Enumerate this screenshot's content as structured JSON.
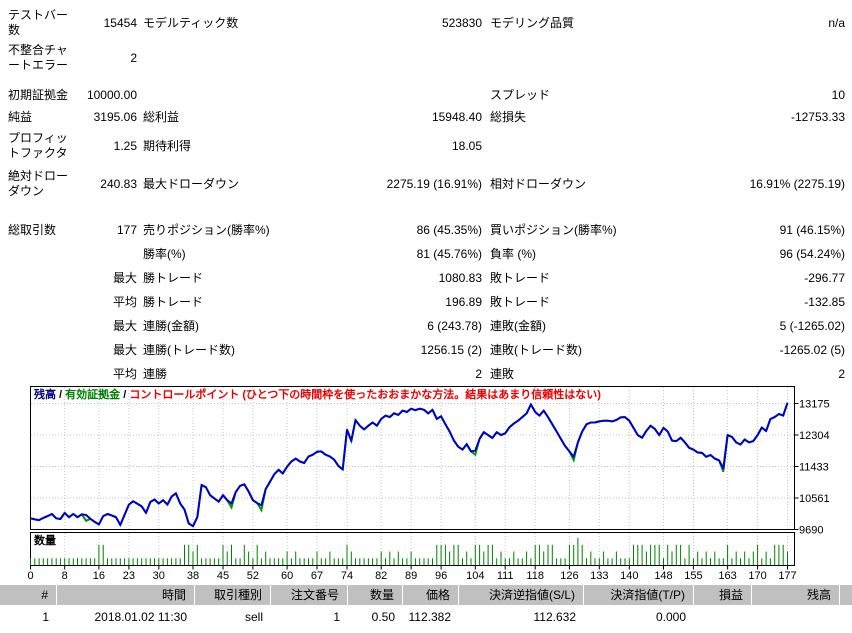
{
  "colors": {
    "balance_line": "#0000cd",
    "equity_line": "#009900",
    "lots_bars": "#008000",
    "legend_balance": "#000080",
    "legend_equity": "#008000",
    "legend_note": "#ee0000",
    "table_header_bg": "#c0c0c0",
    "gridline": "#c6c6c6"
  },
  "stats": {
    "r1": {
      "l1": "テストバー数",
      "v1": "15454",
      "l2": "モデルティック数",
      "v2": "523830",
      "l3": "モデリング品質",
      "v3": "n/a"
    },
    "r2": {
      "l1": "不整合チャートエラー",
      "v1": "2"
    },
    "r3": {
      "l1": "初期証拠金",
      "v1": "10000.00",
      "l3": "スプレッド",
      "v3": "10"
    },
    "r4": {
      "l1": "純益",
      "v1": "3195.06",
      "l2": "総利益",
      "v2": "15948.40",
      "l3": "総損失",
      "v3": "-12753.33"
    },
    "r5": {
      "l1": "プロフィットファクタ",
      "v1": "1.25",
      "l2": "期待利得",
      "v2": "18.05"
    },
    "r6": {
      "l1": "絶対ドローダウン",
      "v1": "240.83",
      "l2": "最大ドローダウン",
      "v2": "2275.19 (16.91%)",
      "l3": "相対ドローダウン",
      "v3": "16.91% (2275.19)"
    },
    "r7": {
      "l1": "総取引数",
      "v1": "177",
      "l2": "売りポジション(勝率%)",
      "v2": "86 (45.35%)",
      "l3": "買いポジション(勝率%)",
      "v3": "91 (46.15%)"
    },
    "r8": {
      "l2": "勝率(%)",
      "v2": "81 (45.76%)",
      "l3": "負率 (%)",
      "v3": "96 (54.24%)"
    },
    "r9": {
      "v1": "最大",
      "l2": "勝トレード",
      "v2": "1080.83",
      "l3": "敗トレード",
      "v3": "-296.77"
    },
    "r10": {
      "v1": "平均",
      "l2": "勝トレード",
      "v2": "196.89",
      "l3": "敗トレード",
      "v3": "-132.85"
    },
    "r11": {
      "v1": "最大",
      "l2": "連勝(金額)",
      "v2": "6 (243.78)",
      "l3": "連敗(金額)",
      "v3": "5 (-1265.02)"
    },
    "r12": {
      "v1": "最大",
      "l2": "連勝(トレード数)",
      "v2": "1256.15 (2)",
      "l3": "連敗(トレード数)",
      "v3": "-1265.02 (5)"
    },
    "r13": {
      "v1": "平均",
      "l2": "連勝",
      "v2": "2",
      "l3": "連敗",
      "v3": "2"
    }
  },
  "chart": {
    "legend_balance": "残高",
    "legend_sep": " / ",
    "legend_equity": "有効証拠金",
    "legend_note": "コントロールポイント (ひとつ下の時間枠を使ったおおまかな方法。結果はあまり信頼性はない)",
    "lots_label": "数量"
  },
  "chart_data": {
    "type": "line",
    "title": "残高 / 有効証拠金 / コントロールポイント",
    "ylim": [
      9690,
      13195
    ],
    "y_ticks": [
      13175,
      12304,
      11433,
      10561,
      9690
    ],
    "x_ticks": [
      0,
      8,
      16,
      23,
      30,
      38,
      45,
      52,
      60,
      67,
      74,
      82,
      89,
      96,
      104,
      111,
      118,
      126,
      133,
      140,
      148,
      155,
      163,
      170,
      177
    ],
    "series": [
      {
        "name": "残高",
        "color": "#0000cd",
        "values": [
          10000,
          9970,
          9950,
          10010,
          10060,
          10120,
          10000,
          9980,
          10150,
          10030,
          10120,
          10030,
          10110,
          10090,
          9985,
          9900,
          9830,
          10060,
          10120,
          10080,
          10030,
          9815,
          10100,
          10380,
          10470,
          10400,
          10330,
          10150,
          10450,
          10520,
          10410,
          10500,
          10380,
          10600,
          10690,
          10410,
          10240,
          9860,
          9780,
          10030,
          10920,
          10860,
          10640,
          10550,
          10460,
          10640,
          10500,
          10410,
          10730,
          10900,
          10940,
          10740,
          10500,
          10420,
          10360,
          10810,
          11010,
          11220,
          11340,
          11240,
          11430,
          11570,
          11650,
          11570,
          11530,
          11710,
          11760,
          11840,
          11850,
          11760,
          11710,
          11620,
          11450,
          11350,
          12450,
          12140,
          12715,
          12560,
          12460,
          12560,
          12650,
          12560,
          12745,
          12840,
          12800,
          12905,
          12860,
          12980,
          12940,
          13030,
          12990,
          13030,
          13000,
          12900,
          13000,
          12750,
          12820,
          12600,
          12400,
          12150,
          11980,
          11900,
          12050,
          11850,
          11870,
          12200,
          12380,
          12300,
          12220,
          12380,
          12300,
          12350,
          12520,
          12620,
          12700,
          12800,
          12900,
          13150,
          12940,
          12840,
          12980,
          12800,
          12600,
          12400,
          12200,
          12000,
          11850,
          11700,
          12100,
          12400,
          12600,
          12650,
          12650,
          12680,
          12700,
          12700,
          12680,
          12720,
          12790,
          12800,
          12700,
          12500,
          12300,
          12230,
          12420,
          12560,
          12470,
          12300,
          12500,
          12400,
          12150,
          12135,
          12230,
          12100,
          11950,
          11900,
          11820,
          11810,
          11700,
          11750,
          11650,
          11600,
          11380,
          12300,
          12250,
          12100,
          12040,
          12180,
          12100,
          12135,
          12300,
          12510,
          12415,
          12745,
          12800,
          12885,
          12840,
          13195
        ]
      },
      {
        "name": "有効証拠金",
        "color": "#009900",
        "dips": [
          [
            13,
            9930
          ],
          [
            47,
            10300
          ],
          [
            54,
            10230
          ],
          [
            104,
            11760
          ],
          [
            127,
            11610
          ],
          [
            162,
            11290
          ]
        ]
      },
      {
        "name": "数量",
        "color": "#008000",
        "values": [
          0.5,
          0.5,
          0.5,
          0.5,
          0.5,
          0.5,
          0.5,
          0.5,
          0.5,
          0.5,
          0.5,
          0.5,
          0.5,
          0.5,
          0.5,
          0.5,
          1.5,
          1.5,
          0.5,
          0.5,
          0.5,
          0.5,
          0.5,
          0.5,
          0.5,
          0.5,
          0.5,
          0.5,
          0.5,
          0.5,
          0.5,
          0.5,
          0.5,
          0.5,
          0.5,
          0.5,
          1.5,
          1.5,
          1,
          1.5,
          0.5,
          0.5,
          0.5,
          0.5,
          0.5,
          1.5,
          1,
          1.5,
          0.5,
          0.5,
          1.5,
          1,
          0.5,
          1.5,
          0.5,
          1,
          0.5,
          0.5,
          0.5,
          0.5,
          1,
          0.5,
          1,
          0.5,
          0.5,
          0.5,
          0.5,
          1,
          0.5,
          0.5,
          1,
          0.5,
          0.5,
          0.5,
          1.5,
          1,
          0.5,
          0.5,
          0.5,
          0.5,
          0.5,
          0.5,
          1,
          0.5,
          1,
          0.5,
          1,
          0.5,
          0.5,
          1,
          0.5,
          0.5,
          0.5,
          0.5,
          0.5,
          1.5,
          1.5,
          1.5,
          1,
          1.5,
          1.5,
          0.5,
          1,
          0.5,
          1.5,
          1.5,
          1,
          1.5,
          1.5,
          0.5,
          1,
          0.5,
          0.5,
          1,
          0.5,
          0.5,
          1,
          0.5,
          1.5,
          1.5,
          1,
          1.5,
          1.5,
          0.5,
          0.5,
          0.5,
          1.5,
          1.5,
          2,
          1.5,
          0.5,
          1,
          0.5,
          0.5,
          1,
          0.5,
          0.5,
          1,
          0.5,
          0.5,
          0.5,
          1.5,
          1.5,
          1.5,
          1,
          1.5,
          1.5,
          1.5,
          0.5,
          1.5,
          1,
          1.5,
          1.5,
          0.5,
          1.5,
          0.5,
          1,
          0.5,
          1,
          0.5,
          1,
          0.5,
          0.5,
          1.5,
          0.5,
          1,
          0.5,
          1,
          0.5,
          1,
          1.5,
          0.5,
          1,
          0.5,
          1.5,
          1.5,
          1.5,
          1
        ]
      }
    ]
  },
  "table": {
    "headers": [
      "#",
      "時間",
      "取引種別",
      "注文番号",
      "数量",
      "価格",
      "決済逆指値(S/L)",
      "決済指値(T/P)",
      "損益",
      "残高"
    ],
    "rows": [
      [
        "1",
        "2018.01.02 11:30",
        "sell",
        "1",
        "0.50",
        "112.382",
        "112.632",
        "0.000",
        "",
        ""
      ]
    ]
  }
}
